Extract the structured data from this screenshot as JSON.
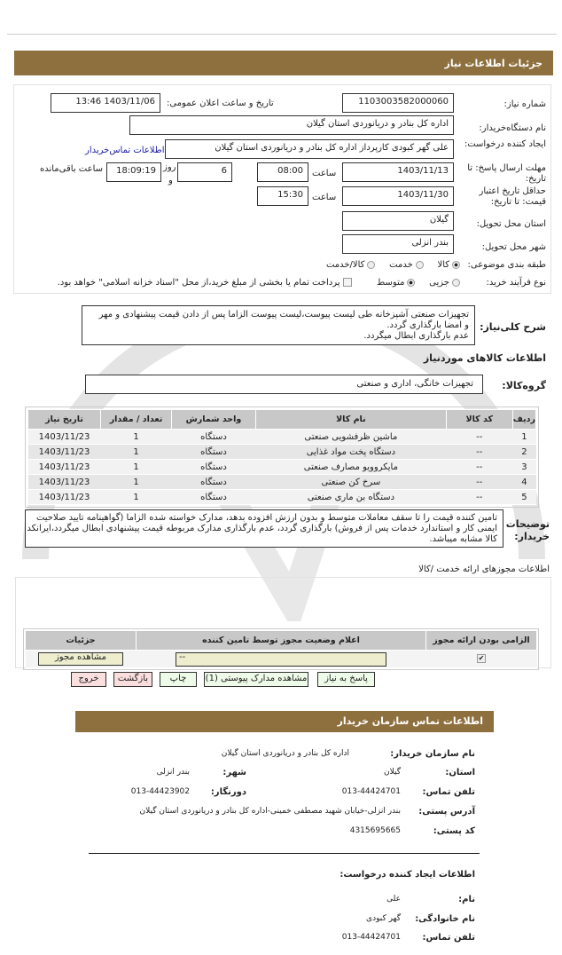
{
  "colors": {
    "header": "#8e6f3e",
    "link": "#1a1aa6",
    "green_button": "#eefbe9",
    "red_button": "#fbdede",
    "license_field": "#eeeecf"
  },
  "header": {
    "title": "جزئیات اطلاعات نیاز"
  },
  "form": {
    "need_number_label": "شماره نیاز:",
    "need_number": "1103003582000060",
    "announce_label": "تاریخ و ساعت اعلان عمومی:",
    "announce_value": "1403/11/06 13:46",
    "buyer_label": "نام دستگاه‌خریدار:",
    "buyer": "اداره کل بنادر و  دریانوردی استان گیلان",
    "creator_label": "ایجاد کننده درخواست:",
    "creator": "علی گهر کبودی کارپرداز اداره کل بنادر و  دریانوردی استان گیلان",
    "contact_link": "اطلاعات تماس‌خریدار",
    "deadline_label": "مهلت ارسال پاسخ: تا تاریخ:",
    "deadline_date": "1403/11/13",
    "time_label": "ساعت",
    "deadline_time": "08:00",
    "days": "6",
    "days_label": "روز",
    "and": "و",
    "remaining": "18:09:19",
    "remaining_label": "ساعت باقی‌مانده",
    "validity_label": "حداقل تاریخ اعتبار قیمت: تا تاریخ:",
    "validity_date": "1403/11/30",
    "validity_time": "15:30",
    "province_label": "استان محل تحویل:",
    "province": "گیلان",
    "city_label": "شهر محل تحویل:",
    "city": "بندر انزلی",
    "category_label": "طبقه بندی موضوعی:",
    "category_options": [
      "کالا",
      "خدمت",
      "کالا/خدمت"
    ],
    "category_selected": "کالا",
    "process_label": "نوع فرآیند خرید:",
    "process_options": [
      "جزیی",
      "متوسط"
    ],
    "process_selected": "متوسط",
    "treasury_note": "پرداخت تمام یا بخشی از مبلغ خرید،از محل \"اسناد خزانه اسلامی\" خواهد بود."
  },
  "description": {
    "label": "شرح کلی‌نیاز:",
    "lines": [
      "تجهیزات  صنعتی آشپزخانه طی لیست  پیوست،لیست پیوست الزاما پس از دادن قیمت  پیشنهادی  و مهر",
      "و امضا بارگذاری گردد.",
      "عدم بارگذاری ابطال میگردد."
    ]
  },
  "goods": {
    "title": "اطلاعات کالاهای موردنیاز",
    "group_label": "گروه‌کالا:",
    "group": "تجهیزات خانگی، اداری و  صنعتی",
    "columns": [
      "ردیف",
      "کد کالا",
      "نام کالا",
      "واحد شمارش",
      "تعداد / مقدار",
      "تاریخ نیاز"
    ],
    "rows": [
      [
        "1",
        "--",
        "ماشین ظرفشویی صنعتی",
        "دستگاه",
        "1",
        "1403/11/23"
      ],
      [
        "2",
        "--",
        "دستگاه پخت مواد غذایی",
        "دستگاه",
        "1",
        "1403/11/23"
      ],
      [
        "3",
        "--",
        "مایکروویو مصارف صنعتی",
        "دستگاه",
        "1",
        "1403/11/23"
      ],
      [
        "4",
        "--",
        "سرخ کن صنعتی",
        "دستگاه",
        "1",
        "1403/11/23"
      ],
      [
        "5",
        "--",
        "دستگاه بن ماری صنعتی",
        "دستگاه",
        "1",
        "1403/11/23"
      ]
    ]
  },
  "notes": {
    "label": "توضیحات خریدار:",
    "lines": [
      "تامین کننده قیمت را تا سقف معاملات متوسط و بدون ارزش افزوده بدهد، مدارک خواسته شده الزاما  (گواهینامه تایید  صلاحیت",
      "ایمنی کار و استاندارد خدمات پس از فروش) بارگذاری گردد، عدم بارگذاری مدارک مربوطه قیمت  پیشنهادی ابطال میگردد،ایرانکد",
      "کالا مشابه میباشد."
    ]
  },
  "licenses": {
    "title": "اطلاعات  مجوزهای ارائه خدمت /کالا",
    "columns": [
      "الزامی بودن ارائه مجوز",
      "اعلام وضعیت مجوز توسط تامین کننده",
      "جزئیات"
    ],
    "status": "--",
    "view_button": "مشاهده مجوز"
  },
  "buttons": {
    "reply": "پاسخ به نیاز",
    "attachments": "مشاهده مدارک پیوستی (1)",
    "print": "چاپ",
    "back": "بازگشت",
    "exit": "خروج"
  },
  "contact": {
    "title": "اطلاعات تماس سازمان خریدار",
    "org_label": "نام سازمان خریدار:",
    "org": "اداره کل بنادر و دریانوردی استان گیلان",
    "province_label": "استان:",
    "province": "گیلان",
    "city_label": "شهر:",
    "city": "بندر انزلی",
    "phone_label": "تلفن تماس:",
    "phone": "013-44424701",
    "fax_label": "دورنگار:",
    "fax": "013-44423902",
    "address_label": "آدرس پستی:",
    "address": "بندر انزلی-خیابان شهید مصطفی خمینی-اداره کل بنادر و دریانوردی استان گیلان",
    "postal_label": "کد پستی:",
    "postal": "4315695665",
    "creator_title": "اطلاعات ایجاد کننده درخواست:",
    "name_label": "نام:",
    "name": "علی",
    "family_label": "نام خانوادگی:",
    "family": "گهر کبودی",
    "cphone_label": "تلفن تماس:",
    "cphone": "013-44424701"
  }
}
